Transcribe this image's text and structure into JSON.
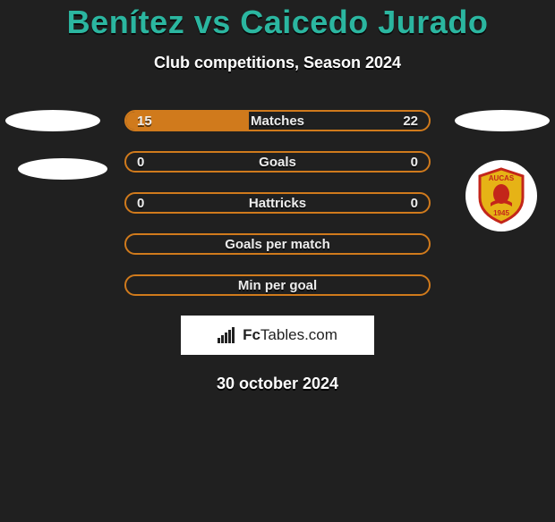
{
  "title": "Benítez vs Caicedo Jurado",
  "subtitle": "Club competitions, Season 2024",
  "date": "30 october 2024",
  "logo_text_prefix": "Fc",
  "logo_text_suffix": "Tables.com",
  "colors": {
    "background": "#202020",
    "title": "#2bb6a0",
    "accent": "#d07a1c",
    "text": "#ececec"
  },
  "crest": {
    "top_text": "AUCAS",
    "year": "1945",
    "shield_fill": "#e6b316",
    "shield_stroke": "#c3261a",
    "head_fill": "#c3261a"
  },
  "rows": [
    {
      "label": "Matches",
      "left": "15",
      "right": "22",
      "fill_left_pct": 40.5,
      "fill_right_pct": 0
    },
    {
      "label": "Goals",
      "left": "0",
      "right": "0",
      "fill_left_pct": 0,
      "fill_right_pct": 0
    },
    {
      "label": "Hattricks",
      "left": "0",
      "right": "0",
      "fill_left_pct": 0,
      "fill_right_pct": 0
    },
    {
      "label": "Goals per match",
      "left": "",
      "right": "",
      "fill_left_pct": 0,
      "fill_right_pct": 0
    },
    {
      "label": "Min per goal",
      "left": "",
      "right": "",
      "fill_left_pct": 0,
      "fill_right_pct": 0
    }
  ]
}
